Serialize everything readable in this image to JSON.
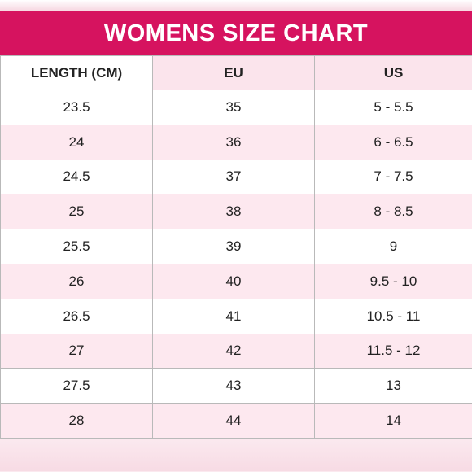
{
  "title": "WOMENS SIZE CHART",
  "columns": [
    "LENGTH (CM)",
    "EU",
    "US"
  ],
  "rows": [
    [
      "23.5",
      "35",
      "5 - 5.5"
    ],
    [
      "24",
      "36",
      "6 - 6.5"
    ],
    [
      "24.5",
      "37",
      "7 - 7.5"
    ],
    [
      "25",
      "38",
      "8 - 8.5"
    ],
    [
      "25.5",
      "39",
      "9"
    ],
    [
      "26",
      "40",
      "9.5 - 10"
    ],
    [
      "26.5",
      "41",
      "10.5 - 11"
    ],
    [
      "27",
      "42",
      "11.5 - 12"
    ],
    [
      "27.5",
      "43",
      "13"
    ],
    [
      "28",
      "44",
      "14"
    ]
  ],
  "colors": {
    "title_bar": "#d6135f",
    "row_alt": "#fde8ef",
    "border": "#b9b9b9"
  }
}
